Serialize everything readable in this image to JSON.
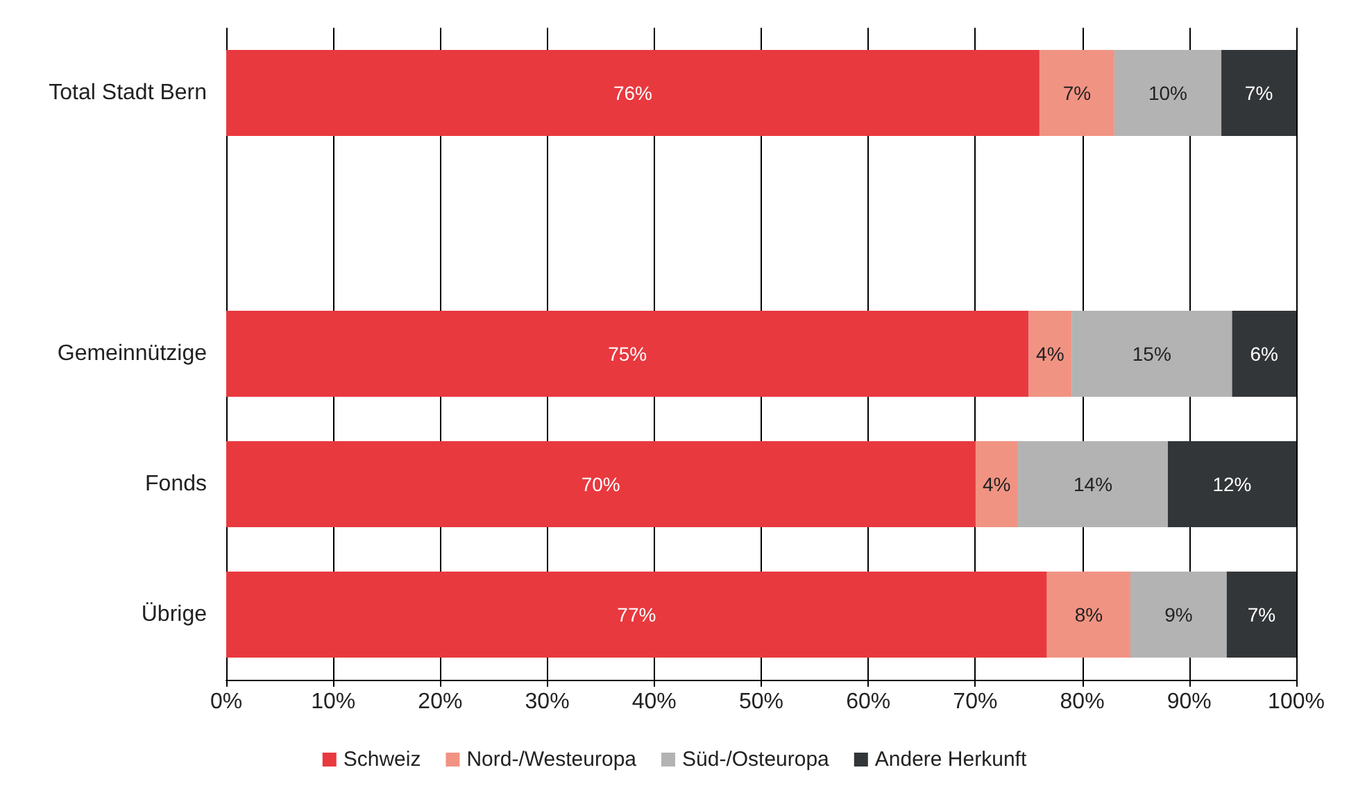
{
  "chart_data": {
    "type": "bar",
    "orientation": "horizontal",
    "stacked": true,
    "categories": [
      "Total Stadt Bern",
      null,
      "Gemeinnützige",
      "Fonds",
      "Übrige"
    ],
    "series": [
      {
        "name": "Schweiz",
        "color": "#e8393f",
        "values": [
          76,
          null,
          75,
          70,
          76.7
        ],
        "value_labels": [
          "76%",
          null,
          "75%",
          "70%",
          "77%"
        ]
      },
      {
        "name": "Nord-/Westeuropa",
        "color": "#f19383",
        "values": [
          7,
          null,
          4,
          4,
          7.8
        ],
        "value_labels": [
          "7%",
          null,
          "4%",
          "4%",
          "8%"
        ]
      },
      {
        "name": "Süd-/Osteuropa",
        "color": "#b3b3b3",
        "values": [
          10,
          null,
          15,
          14,
          9.0
        ],
        "value_labels": [
          "10%",
          null,
          "15%",
          "14%",
          "9%"
        ]
      },
      {
        "name": "Andere Herkunft",
        "color": "#333638",
        "values": [
          7,
          null,
          6,
          12,
          6.5
        ],
        "value_labels": [
          "7%",
          null,
          "6%",
          "12%",
          "7%"
        ]
      }
    ],
    "xlim": [
      0,
      100
    ],
    "xticks": [
      {
        "value": 0,
        "label": "0%"
      },
      {
        "value": 10,
        "label": "10%"
      },
      {
        "value": 20,
        "label": "20%"
      },
      {
        "value": 30,
        "label": "30%"
      },
      {
        "value": 40,
        "label": "40%"
      },
      {
        "value": 50,
        "label": "50%"
      },
      {
        "value": 60,
        "label": "60%"
      },
      {
        "value": 70,
        "label": "70%"
      },
      {
        "value": 80,
        "label": "80%"
      },
      {
        "value": 90,
        "label": "90%"
      },
      {
        "value": 100,
        "label": "100%"
      }
    ],
    "grid": "x",
    "legend": "bottom"
  }
}
